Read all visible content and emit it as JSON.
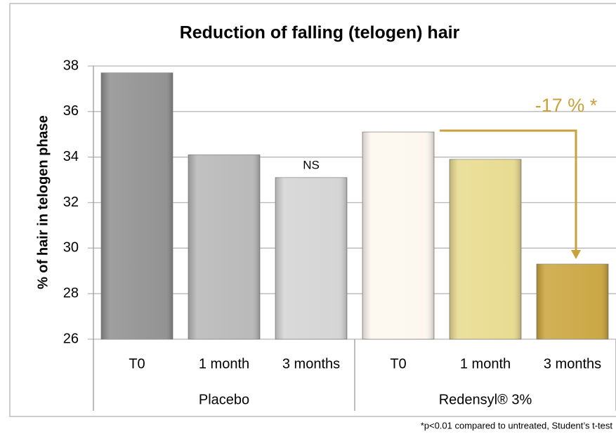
{
  "chart_data": {
    "type": "bar",
    "title": "Reduction of falling (telogen) hair",
    "y_label": "% of hair in telogen phase",
    "categories": [
      "T0",
      "1 month",
      "3 months",
      "T0",
      "1 month",
      "3 months"
    ],
    "groups": [
      "Placebo",
      "Redensyl® 3%"
    ],
    "values": [
      37.7,
      34.1,
      33.1,
      35.1,
      33.9,
      29.3
    ],
    "colors": [
      "#8e8e8e",
      "#b6b6b6",
      "#d3d3d3",
      "#fdf7ee",
      "#e7da8c",
      "#c9a33b"
    ],
    "ylim": [
      26,
      38
    ],
    "yticks": [
      26,
      28,
      30,
      32,
      34,
      36,
      38
    ],
    "grid": true,
    "annotations": [
      "NS",
      "-17 % *"
    ],
    "footnote": "*p<0.01 compared to untreated, Student’s t-test"
  }
}
